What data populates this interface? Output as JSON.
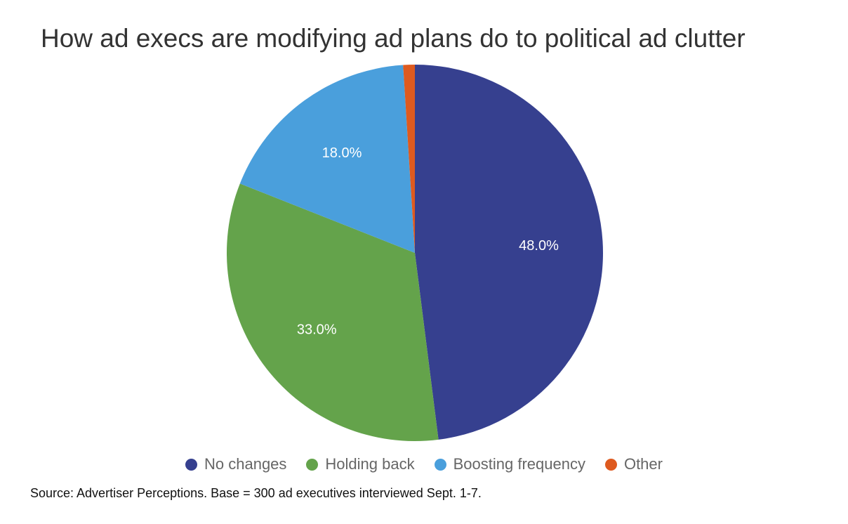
{
  "chart_data": {
    "type": "pie",
    "title": "How ad execs are modifying ad plans do to political ad clutter",
    "categories": [
      "No changes",
      "Holding back",
      "Boosting frequency",
      "Other"
    ],
    "values": [
      48.0,
      33.0,
      18.0,
      1.0
    ],
    "data_labels": [
      "48.0%",
      "33.0%",
      "18.0%",
      ""
    ],
    "colors": [
      "#36408f",
      "#64a34b",
      "#4a9fdc",
      "#de5a1f"
    ],
    "legend_position": "bottom"
  },
  "source_note": "Source: Advertiser Perceptions. Base = 300 ad executives interviewed Sept. 1-7."
}
